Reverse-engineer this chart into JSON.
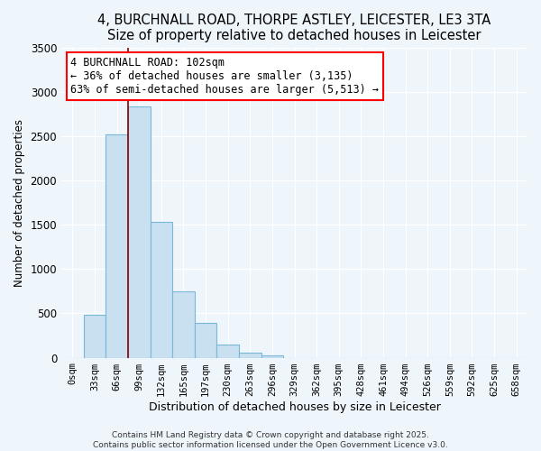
{
  "title": "4, BURCHNALL ROAD, THORPE ASTLEY, LEICESTER, LE3 3TA",
  "subtitle": "Size of property relative to detached houses in Leicester",
  "xlabel": "Distribution of detached houses by size in Leicester",
  "ylabel": "Number of detached properties",
  "bar_labels": [
    "0sqm",
    "33sqm",
    "66sqm",
    "99sqm",
    "132sqm",
    "165sqm",
    "197sqm",
    "230sqm",
    "263sqm",
    "296sqm",
    "329sqm",
    "362sqm",
    "395sqm",
    "428sqm",
    "461sqm",
    "494sqm",
    "526sqm",
    "559sqm",
    "592sqm",
    "625sqm",
    "658sqm"
  ],
  "bar_values": [
    0,
    480,
    2520,
    2840,
    1530,
    750,
    390,
    150,
    60,
    30,
    0,
    0,
    0,
    0,
    0,
    0,
    0,
    0,
    0,
    0,
    0
  ],
  "bar_color": "#c8e0f0",
  "bar_edge_color": "#7ab8d8",
  "ylim": [
    0,
    3500
  ],
  "yticks": [
    0,
    500,
    1000,
    1500,
    2000,
    2500,
    3000,
    3500
  ],
  "annotation_title": "4 BURCHNALL ROAD: 102sqm",
  "annotation_line1": "← 36% of detached houses are smaller (3,135)",
  "annotation_line2": "63% of semi-detached houses are larger (5,513) →",
  "vline_x": 2.5,
  "footer1": "Contains HM Land Registry data © Crown copyright and database right 2025.",
  "footer2": "Contains public sector information licensed under the Open Government Licence v3.0.",
  "bg_color": "#eef5fb",
  "grid_color": "#ffffff",
  "title_fontsize": 10.5,
  "subtitle_fontsize": 9.5
}
